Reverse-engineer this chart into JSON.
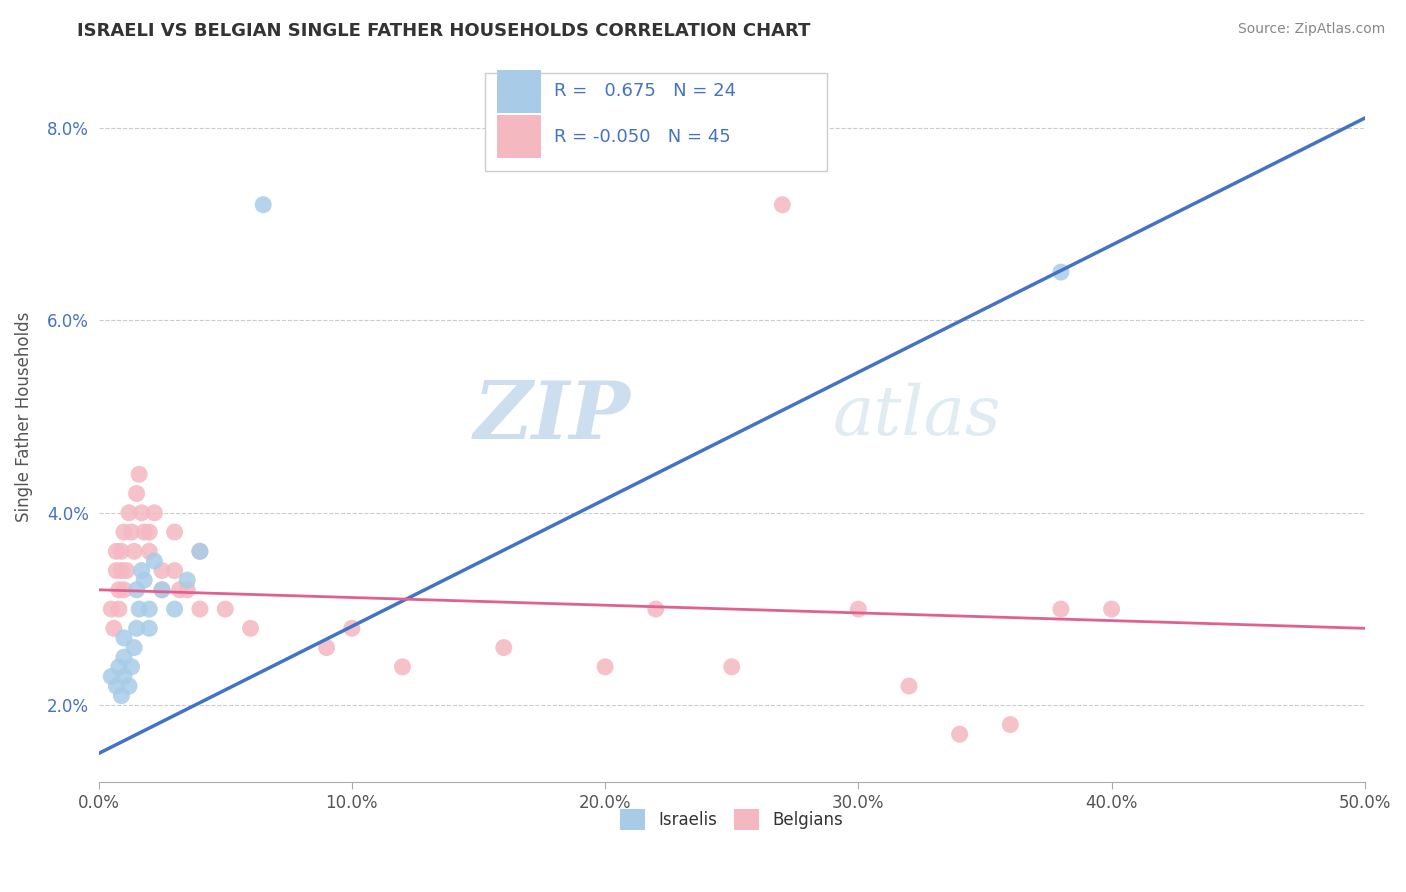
{
  "title": "ISRAELI VS BELGIAN SINGLE FATHER HOUSEHOLDS CORRELATION CHART",
  "source": "Source: ZipAtlas.com",
  "ylabel": "Single Father Households",
  "xlim": [
    0.0,
    0.5
  ],
  "ylim": [
    0.012,
    0.088
  ],
  "xticks": [
    0.0,
    0.1,
    0.2,
    0.3,
    0.4,
    0.5
  ],
  "yticks": [
    0.02,
    0.04,
    0.06,
    0.08
  ],
  "ytick_labels": [
    "2.0%",
    "4.0%",
    "6.0%",
    "8.0%"
  ],
  "xtick_labels": [
    "0.0%",
    "10.0%",
    "20.0%",
    "30.0%",
    "40.0%",
    "50.0%"
  ],
  "israeli_color": "#a8cce8",
  "belgian_color": "#f4b8c1",
  "israeli_line_color": "#4472c4",
  "belgian_line_color": "#e06090",
  "R_israeli": 0.675,
  "N_israeli": 24,
  "R_belgian": -0.05,
  "N_belgian": 45,
  "watermark_zip": "ZIP",
  "watermark_atlas": "atlas",
  "israeli_line_x0": 0.0,
  "israeli_line_y0": 0.015,
  "israeli_line_x1": 0.5,
  "israeli_line_y1": 0.081,
  "belgian_line_x0": 0.0,
  "belgian_line_y0": 0.032,
  "belgian_line_x1": 0.5,
  "belgian_line_y1": 0.028,
  "israeli_x": [
    0.005,
    0.007,
    0.008,
    0.009,
    0.01,
    0.01,
    0.01,
    0.012,
    0.013,
    0.014,
    0.015,
    0.015,
    0.016,
    0.017,
    0.018,
    0.02,
    0.02,
    0.022,
    0.025,
    0.03,
    0.035,
    0.04,
    0.065,
    0.38
  ],
  "israeli_y": [
    0.023,
    0.022,
    0.024,
    0.021,
    0.023,
    0.025,
    0.027,
    0.022,
    0.024,
    0.026,
    0.028,
    0.032,
    0.03,
    0.034,
    0.033,
    0.028,
    0.03,
    0.035,
    0.032,
    0.03,
    0.033,
    0.036,
    0.072,
    0.065
  ],
  "belgian_x": [
    0.005,
    0.006,
    0.007,
    0.007,
    0.008,
    0.008,
    0.009,
    0.009,
    0.01,
    0.01,
    0.011,
    0.012,
    0.013,
    0.014,
    0.015,
    0.016,
    0.017,
    0.018,
    0.02,
    0.02,
    0.022,
    0.025,
    0.025,
    0.03,
    0.03,
    0.032,
    0.035,
    0.04,
    0.04,
    0.05,
    0.06,
    0.09,
    0.1,
    0.12,
    0.16,
    0.2,
    0.22,
    0.25,
    0.3,
    0.32,
    0.34,
    0.36,
    0.38,
    0.4,
    0.27
  ],
  "belgian_y": [
    0.03,
    0.028,
    0.034,
    0.036,
    0.03,
    0.032,
    0.034,
    0.036,
    0.032,
    0.038,
    0.034,
    0.04,
    0.038,
    0.036,
    0.042,
    0.044,
    0.04,
    0.038,
    0.036,
    0.038,
    0.04,
    0.034,
    0.032,
    0.038,
    0.034,
    0.032,
    0.032,
    0.036,
    0.03,
    0.03,
    0.028,
    0.026,
    0.028,
    0.024,
    0.026,
    0.024,
    0.03,
    0.024,
    0.03,
    0.022,
    0.017,
    0.018,
    0.03,
    0.03,
    0.072
  ]
}
